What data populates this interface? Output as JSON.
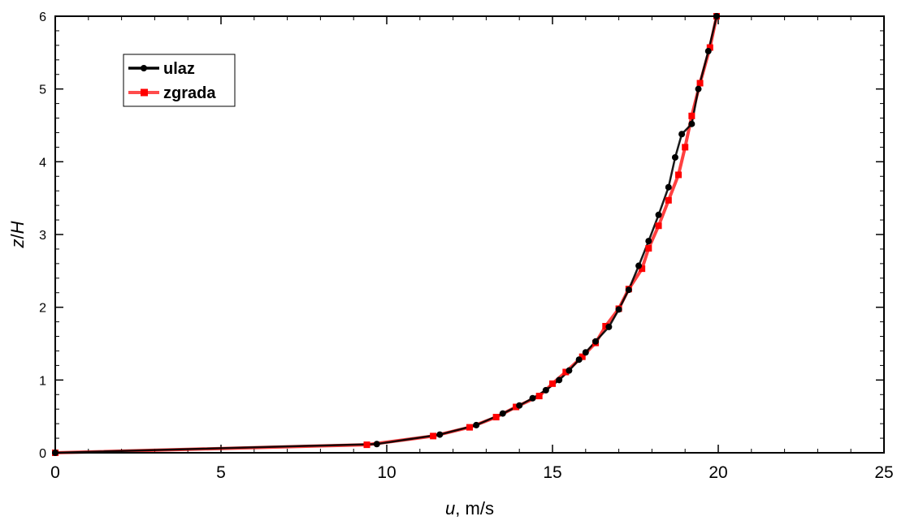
{
  "chart_data": {
    "type": "line",
    "xlabel": "u, m/s",
    "ylabel": "z/H",
    "xlim": [
      0,
      25
    ],
    "ylim": [
      0,
      6
    ],
    "xticks": [
      0,
      5,
      10,
      15,
      20,
      25
    ],
    "yticks": [
      0,
      1,
      2,
      3,
      4,
      5,
      6
    ],
    "grid": false,
    "legend_position": "top-left",
    "series": [
      {
        "name": "ulaz",
        "color": "#000000",
        "marker": "circle",
        "x": [
          0.0,
          9.7,
          11.6,
          12.7,
          13.5,
          14.0,
          14.4,
          14.8,
          15.2,
          15.5,
          15.8,
          16.0,
          16.3,
          16.7,
          17.0,
          17.3,
          17.6,
          17.9,
          18.2,
          18.5,
          18.7,
          18.9,
          19.2,
          19.4,
          19.7,
          19.95
        ],
        "y": [
          0.0,
          0.12,
          0.25,
          0.38,
          0.54,
          0.65,
          0.75,
          0.86,
          1.0,
          1.13,
          1.28,
          1.38,
          1.53,
          1.73,
          1.97,
          2.24,
          2.57,
          2.91,
          3.27,
          3.65,
          4.06,
          4.38,
          4.52,
          5.0,
          5.52,
          6.0
        ]
      },
      {
        "name": "zgrada",
        "color": "#ff0000",
        "marker": "square",
        "x": [
          0.0,
          9.4,
          11.4,
          12.5,
          13.3,
          13.9,
          14.6,
          15.0,
          15.4,
          15.9,
          16.3,
          16.6,
          17.0,
          17.3,
          17.7,
          17.9,
          18.2,
          18.5,
          18.8,
          19.0,
          19.2,
          19.45,
          19.75,
          19.95
        ],
        "y": [
          0.0,
          0.11,
          0.23,
          0.35,
          0.49,
          0.63,
          0.78,
          0.95,
          1.11,
          1.32,
          1.51,
          1.74,
          1.98,
          2.25,
          2.53,
          2.81,
          3.12,
          3.47,
          3.82,
          4.2,
          4.63,
          5.08,
          5.57,
          6.0
        ]
      }
    ]
  }
}
